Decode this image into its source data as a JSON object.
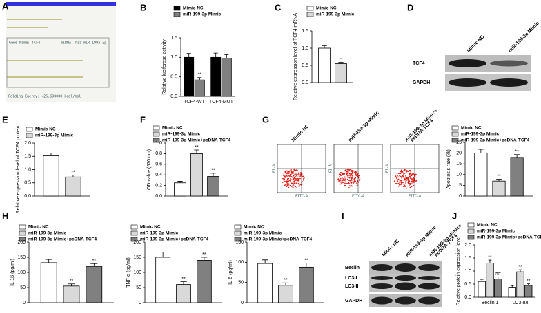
{
  "chart_data": [
    {
      "panel": "B",
      "type": "bar",
      "y_label": "Relative luciferase activity",
      "categories": [
        "TCF4-WT",
        "TCF4-MUT"
      ],
      "ylim": [
        0,
        1.5
      ],
      "yticks": [
        {
          "value": 0,
          "label": "0.0"
        },
        {
          "value": 0.5,
          "label": "0.5"
        },
        {
          "value": 1,
          "label": "1.0"
        },
        {
          "value": 1.5,
          "label": "1.5"
        }
      ],
      "series": [
        {
          "name": "Mimic NC",
          "color": "#000000",
          "values": [
            1.0,
            1.0
          ],
          "errors": [
            0.1,
            0.11
          ],
          "significance": [
            null,
            null
          ]
        },
        {
          "name": "miR-199-3p Mimic",
          "color": "#808080",
          "values": [
            0.42,
            0.98
          ],
          "errors": [
            0.06,
            0.09
          ],
          "significance": [
            "**",
            null
          ]
        }
      ]
    },
    {
      "panel": "C",
      "type": "bar",
      "y_label": "Relative expression level of TCF4 mRNA",
      "ylim": [
        0,
        1.5
      ],
      "yticks": [
        {
          "value": 0,
          "label": "0.0"
        },
        {
          "value": 0.5,
          "label": "0.5"
        },
        {
          "value": 1,
          "label": "1.0"
        },
        {
          "value": 1.5,
          "label": "1.5"
        }
      ],
      "series": [
        {
          "name": "Mimic NC",
          "color": "#ffffff",
          "values": [
            1.0
          ],
          "errors": [
            0.07
          ],
          "significance": [
            null
          ]
        },
        {
          "name": "miR-199-3p Mimic",
          "color": "#d9d9d9",
          "values": [
            0.55
          ],
          "errors": [
            0.04
          ],
          "significance": [
            "**"
          ]
        }
      ]
    },
    {
      "panel": "E",
      "type": "bar",
      "y_label": "Relative expression level of TCF4 protein",
      "ylim": [
        0,
        2
      ],
      "yticks": [
        {
          "value": 0,
          "label": "0.0"
        },
        {
          "value": 0.5,
          "label": "0.5"
        },
        {
          "value": 1,
          "label": "1.0"
        },
        {
          "value": 1.5,
          "label": "1.5"
        },
        {
          "value": 2,
          "label": "2.0"
        }
      ],
      "series": [
        {
          "name": "Mimic NC",
          "color": "#ffffff",
          "values": [
            1.52
          ],
          "errors": [
            0.1
          ],
          "significance": [
            null
          ]
        },
        {
          "name": "miR-199-3p Mimic",
          "color": "#d9d9d9",
          "values": [
            0.72
          ],
          "errors": [
            0.07
          ],
          "significance": [
            "**"
          ]
        }
      ]
    },
    {
      "panel": "F",
      "type": "bar",
      "y_label": "OD value (570 nm)",
      "ylim": [
        0,
        1
      ],
      "yticks": [
        {
          "value": 0,
          "label": "0.0"
        },
        {
          "value": 0.2,
          "label": "0.2"
        },
        {
          "value": 0.4,
          "label": "0.4"
        },
        {
          "value": 0.6,
          "label": "0.6"
        },
        {
          "value": 0.8,
          "label": "0.8"
        },
        {
          "value": 1,
          "label": "1.0"
        }
      ],
      "series": [
        {
          "name": "Mimic NC",
          "color": "#ffffff",
          "values": [
            0.25
          ],
          "errors": [
            0.03
          ],
          "significance": [
            null
          ]
        },
        {
          "name": "miR-199-3p Mimic",
          "color": "#d9d9d9",
          "values": [
            0.8
          ],
          "errors": [
            0.07
          ],
          "significance": [
            "**"
          ]
        },
        {
          "name": "miR-199-3p Mimic+pcDNA-TCF4",
          "color": "#808080",
          "values": [
            0.37
          ],
          "errors": [
            0.06
          ],
          "significance": [
            "**"
          ]
        }
      ]
    },
    {
      "panel": "G",
      "type": "bar",
      "y_label": "Apoptosis rate (%)",
      "ylim": [
        0,
        25
      ],
      "yticks": [
        0,
        5,
        10,
        15,
        20,
        25
      ],
      "series": [
        {
          "name": "Mimic NC",
          "color": "#ffffff",
          "values": [
            20
          ],
          "errors": [
            1.8
          ],
          "significance": [
            null
          ]
        },
        {
          "name": "miR-199-3p Mimic",
          "color": "#d9d9d9",
          "values": [
            7
          ],
          "errors": [
            0.9
          ],
          "significance": [
            "**"
          ]
        },
        {
          "name": "miR-199-3p Mimic+pcDNA-TCF4",
          "color": "#808080",
          "values": [
            18
          ],
          "errors": [
            1.3
          ],
          "significance": [
            "**"
          ]
        }
      ]
    },
    {
      "panel": "H",
      "type": "bar",
      "y_label": "IL-1β (pg/ml)",
      "ylim": [
        0,
        200
      ],
      "yticks": [
        0,
        50,
        100,
        150,
        200
      ],
      "series": [
        {
          "name": "Mimic NC",
          "color": "#ffffff",
          "values": [
            132
          ],
          "errors": [
            11
          ],
          "significance": [
            null
          ]
        },
        {
          "name": "miR-199-3p Mimic",
          "color": "#d9d9d9",
          "values": [
            55
          ],
          "errors": [
            7
          ],
          "significance": [
            "**"
          ]
        },
        {
          "name": "miR-199-3p Mimic+pcDNA-TCF4",
          "color": "#808080",
          "values": [
            120
          ],
          "errors": [
            9
          ],
          "significance": [
            "**"
          ]
        }
      ]
    },
    {
      "type": "bar",
      "y_label": "TNF-α (pg/ml)",
      "ylim": [
        0,
        200
      ],
      "yticks": [
        0,
        50,
        100,
        150,
        200
      ],
      "series": [
        {
          "name": "Mimic NC",
          "color": "#ffffff",
          "values": [
            150
          ],
          "errors": [
            17
          ],
          "significance": [
            null
          ]
        },
        {
          "name": "miR-199-3p Mimic",
          "color": "#d9d9d9",
          "values": [
            60
          ],
          "errors": [
            9
          ],
          "significance": [
            "**"
          ]
        },
        {
          "name": "miR-199-3p Mimic+pcDNA-TCF4",
          "color": "#808080",
          "values": [
            140
          ],
          "errors": [
            10
          ],
          "significance": [
            "**"
          ]
        }
      ]
    },
    {
      "type": "bar",
      "y_label": "IL-6 (pg/ml)",
      "ylim": [
        0,
        150
      ],
      "yticks": [
        0,
        50,
        100,
        150
      ],
      "series": [
        {
          "name": "Mimic NC",
          "color": "#ffffff",
          "values": [
            97
          ],
          "errors": [
            9
          ],
          "significance": [
            null
          ]
        },
        {
          "name": "miR-199-3p Mimic",
          "color": "#d9d9d9",
          "values": [
            43
          ],
          "errors": [
            6
          ],
          "significance": [
            "**"
          ]
        },
        {
          "name": "miR-199-3p Mimic+pcDNA-TCF4",
          "color": "#808080",
          "values": [
            88
          ],
          "errors": [
            10
          ],
          "significance": [
            "**"
          ]
        }
      ]
    },
    {
      "panel": "J",
      "type": "bar",
      "y_label": "Relative protein expression level",
      "categories": [
        "Beclin 1",
        "LC3-II/I"
      ],
      "ylim": [
        0,
        2
      ],
      "yticks": [
        {
          "value": 0,
          "label": "0.0"
        },
        {
          "value": 0.5,
          "label": "0.5"
        },
        {
          "value": 1,
          "label": "1.0"
        },
        {
          "value": 1.5,
          "label": "1.5"
        },
        {
          "value": 2,
          "label": "2.0"
        }
      ],
      "series": [
        {
          "name": "Mimic NC",
          "color": "#ffffff",
          "values": [
            0.6,
            0.38
          ],
          "errors": [
            0.08,
            0.06
          ],
          "significance": [
            null,
            null
          ]
        },
        {
          "name": "miR-199-3p Mimic",
          "color": "#d9d9d9",
          "values": [
            1.3,
            0.97
          ],
          "errors": [
            0.12,
            0.08
          ],
          "significance": [
            "**",
            "**"
          ]
        },
        {
          "name": "miR-199-3p Mimic+pcDNA-TCF4",
          "color": "#808080",
          "values": [
            0.7,
            0.45
          ],
          "errors": [
            0.08,
            0.06
          ],
          "significance": [
            "##",
            "**"
          ]
        }
      ]
    }
  ],
  "panel_a": {
    "panel": "A",
    "gene": "Gene Name: TCF4",
    "mirna": "miRNA: hsa-miR-199a-3p",
    "energy": "Folding Energy: -26.600000 kcal/mol"
  },
  "panel_d": {
    "panel": "D",
    "columns": [
      "Mimic NC",
      "miR-199-3p Mimic"
    ],
    "rows": [
      "TCF4",
      "GAPDH"
    ]
  },
  "panel_g_flow": {
    "columns": [
      [
        "Mimic NC"
      ],
      [
        "miR-199-3p Mimic"
      ],
      [
        "miR-199-3p Mimic+",
        "pcDNA-TCF4"
      ]
    ],
    "x_label": "FITC-A",
    "y_label": "PI-A"
  },
  "panel_i": {
    "panel": "I",
    "columns": [
      [
        "Mimic NC"
      ],
      [
        "miR-199-3p Mimic"
      ],
      [
        "miR-199-3p Mimic+",
        "pcDNA-TCF4"
      ]
    ],
    "rows": [
      "Beclin",
      "LC3-I",
      "LC3-II",
      "GAPDH"
    ]
  }
}
